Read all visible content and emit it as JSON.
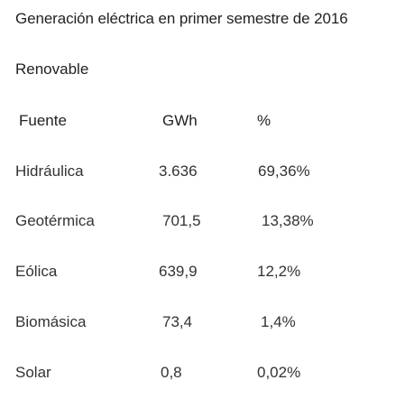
{
  "title": "Generación eléctrica en primer semestre de 2016",
  "section": "Renovable",
  "table": {
    "headers": [
      "Fuente",
      "GWh",
      "%"
    ],
    "rows": [
      [
        "Hidráulica",
        "3.636",
        "69,36%"
      ],
      [
        "Geotérmica",
        "701,5",
        "13,38%"
      ],
      [
        "Eólica",
        "639,9",
        "12,2%"
      ],
      [
        "Biomásica",
        "73,4",
        "1,4%"
      ],
      [
        "Solar",
        "0,8",
        "0,02%"
      ]
    ]
  }
}
